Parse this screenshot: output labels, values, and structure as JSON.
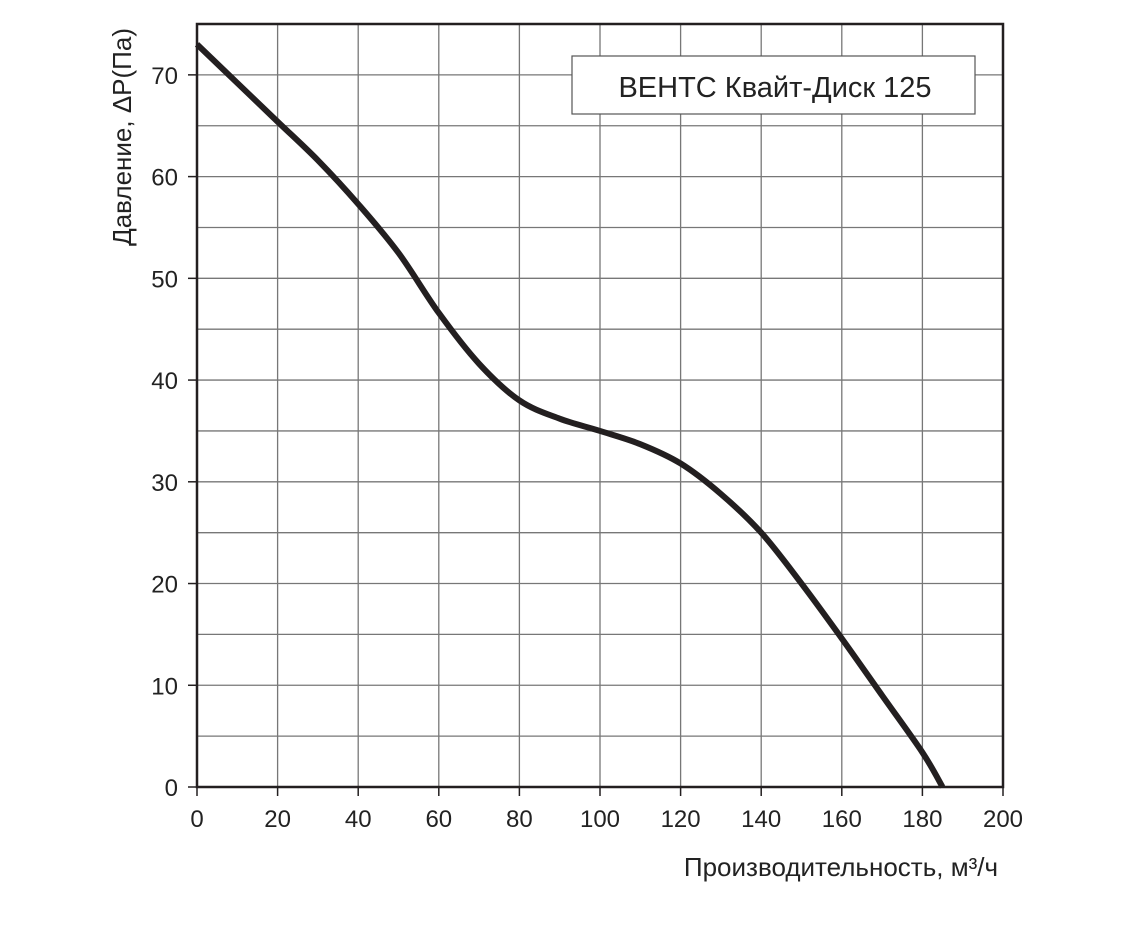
{
  "chart_data": {
    "type": "line",
    "title": "ВЕНТС Квайт-Диск 125",
    "xlabel": "Производительность, м³/ч",
    "ylabel": "Давление, ΔР(Па)",
    "xlim": [
      0,
      200
    ],
    "ylim": [
      0,
      75
    ],
    "x_ticks": [
      "0",
      "20",
      "40",
      "60",
      "80",
      "100",
      "120",
      "140",
      "160",
      "180",
      "200"
    ],
    "y_ticks": [
      "0",
      "10",
      "20",
      "30",
      "40",
      "50",
      "60",
      "70"
    ],
    "grid": true,
    "grid_x_step": 20,
    "grid_y_step": 5,
    "legend_position": "top-right",
    "series": [
      {
        "name": "ВЕНТС Квайт-Диск 125",
        "color": "#231f20",
        "x": [
          0,
          10,
          20,
          30,
          40,
          50,
          60,
          70,
          80,
          90,
          100,
          110,
          120,
          130,
          140,
          150,
          160,
          170,
          180,
          185
        ],
        "y": [
          73,
          69.2,
          65.4,
          61.6,
          57.3,
          52.5,
          46.6,
          41.6,
          38,
          36.2,
          35,
          33.7,
          31.8,
          28.8,
          25,
          20,
          14.6,
          9,
          3.4,
          0
        ]
      }
    ]
  }
}
